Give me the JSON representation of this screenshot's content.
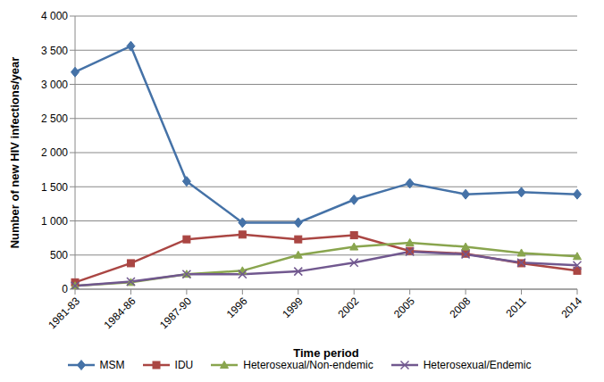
{
  "chart_data": {
    "type": "line",
    "x_label": "Time period",
    "y_label": "Number of new HIV infections/year",
    "categories": [
      "1981-83",
      "1984-86",
      "1987-90",
      "1996",
      "1999",
      "2002",
      "2005",
      "2008",
      "2011",
      "2014"
    ],
    "series": [
      {
        "name": "MSM",
        "color": "#4572A7",
        "marker": "diamond",
        "values": [
          3180,
          3560,
          1580,
          975,
          975,
          1310,
          1550,
          1390,
          1420,
          1390
        ]
      },
      {
        "name": "IDU",
        "color": "#AA4643",
        "marker": "square",
        "values": [
          100,
          380,
          730,
          800,
          730,
          790,
          560,
          520,
          380,
          270
        ]
      },
      {
        "name": "Heterosexual/Non-endemic",
        "color": "#89A54E",
        "marker": "triangle",
        "values": [
          50,
          100,
          220,
          270,
          500,
          620,
          680,
          620,
          530,
          480
        ]
      },
      {
        "name": "Heterosexual/Endemic",
        "color": "#71588F",
        "marker": "x",
        "values": [
          50,
          110,
          220,
          220,
          260,
          390,
          550,
          510,
          390,
          350
        ]
      }
    ],
    "ylim": [
      0,
      4000
    ],
    "yticks": [
      0,
      500,
      {
        "value": 1000,
        "label": "1 000"
      },
      {
        "value": 1500,
        "label": "1 500"
      },
      {
        "value": 2000,
        "label": "2 000"
      },
      {
        "value": 2500,
        "label": "2 500"
      },
      {
        "value": 3000,
        "label": "3 000"
      },
      {
        "value": 3500,
        "label": "3 500"
      },
      {
        "value": 4000,
        "label": "4 000"
      }
    ],
    "grid": true,
    "legend": "bottom"
  }
}
